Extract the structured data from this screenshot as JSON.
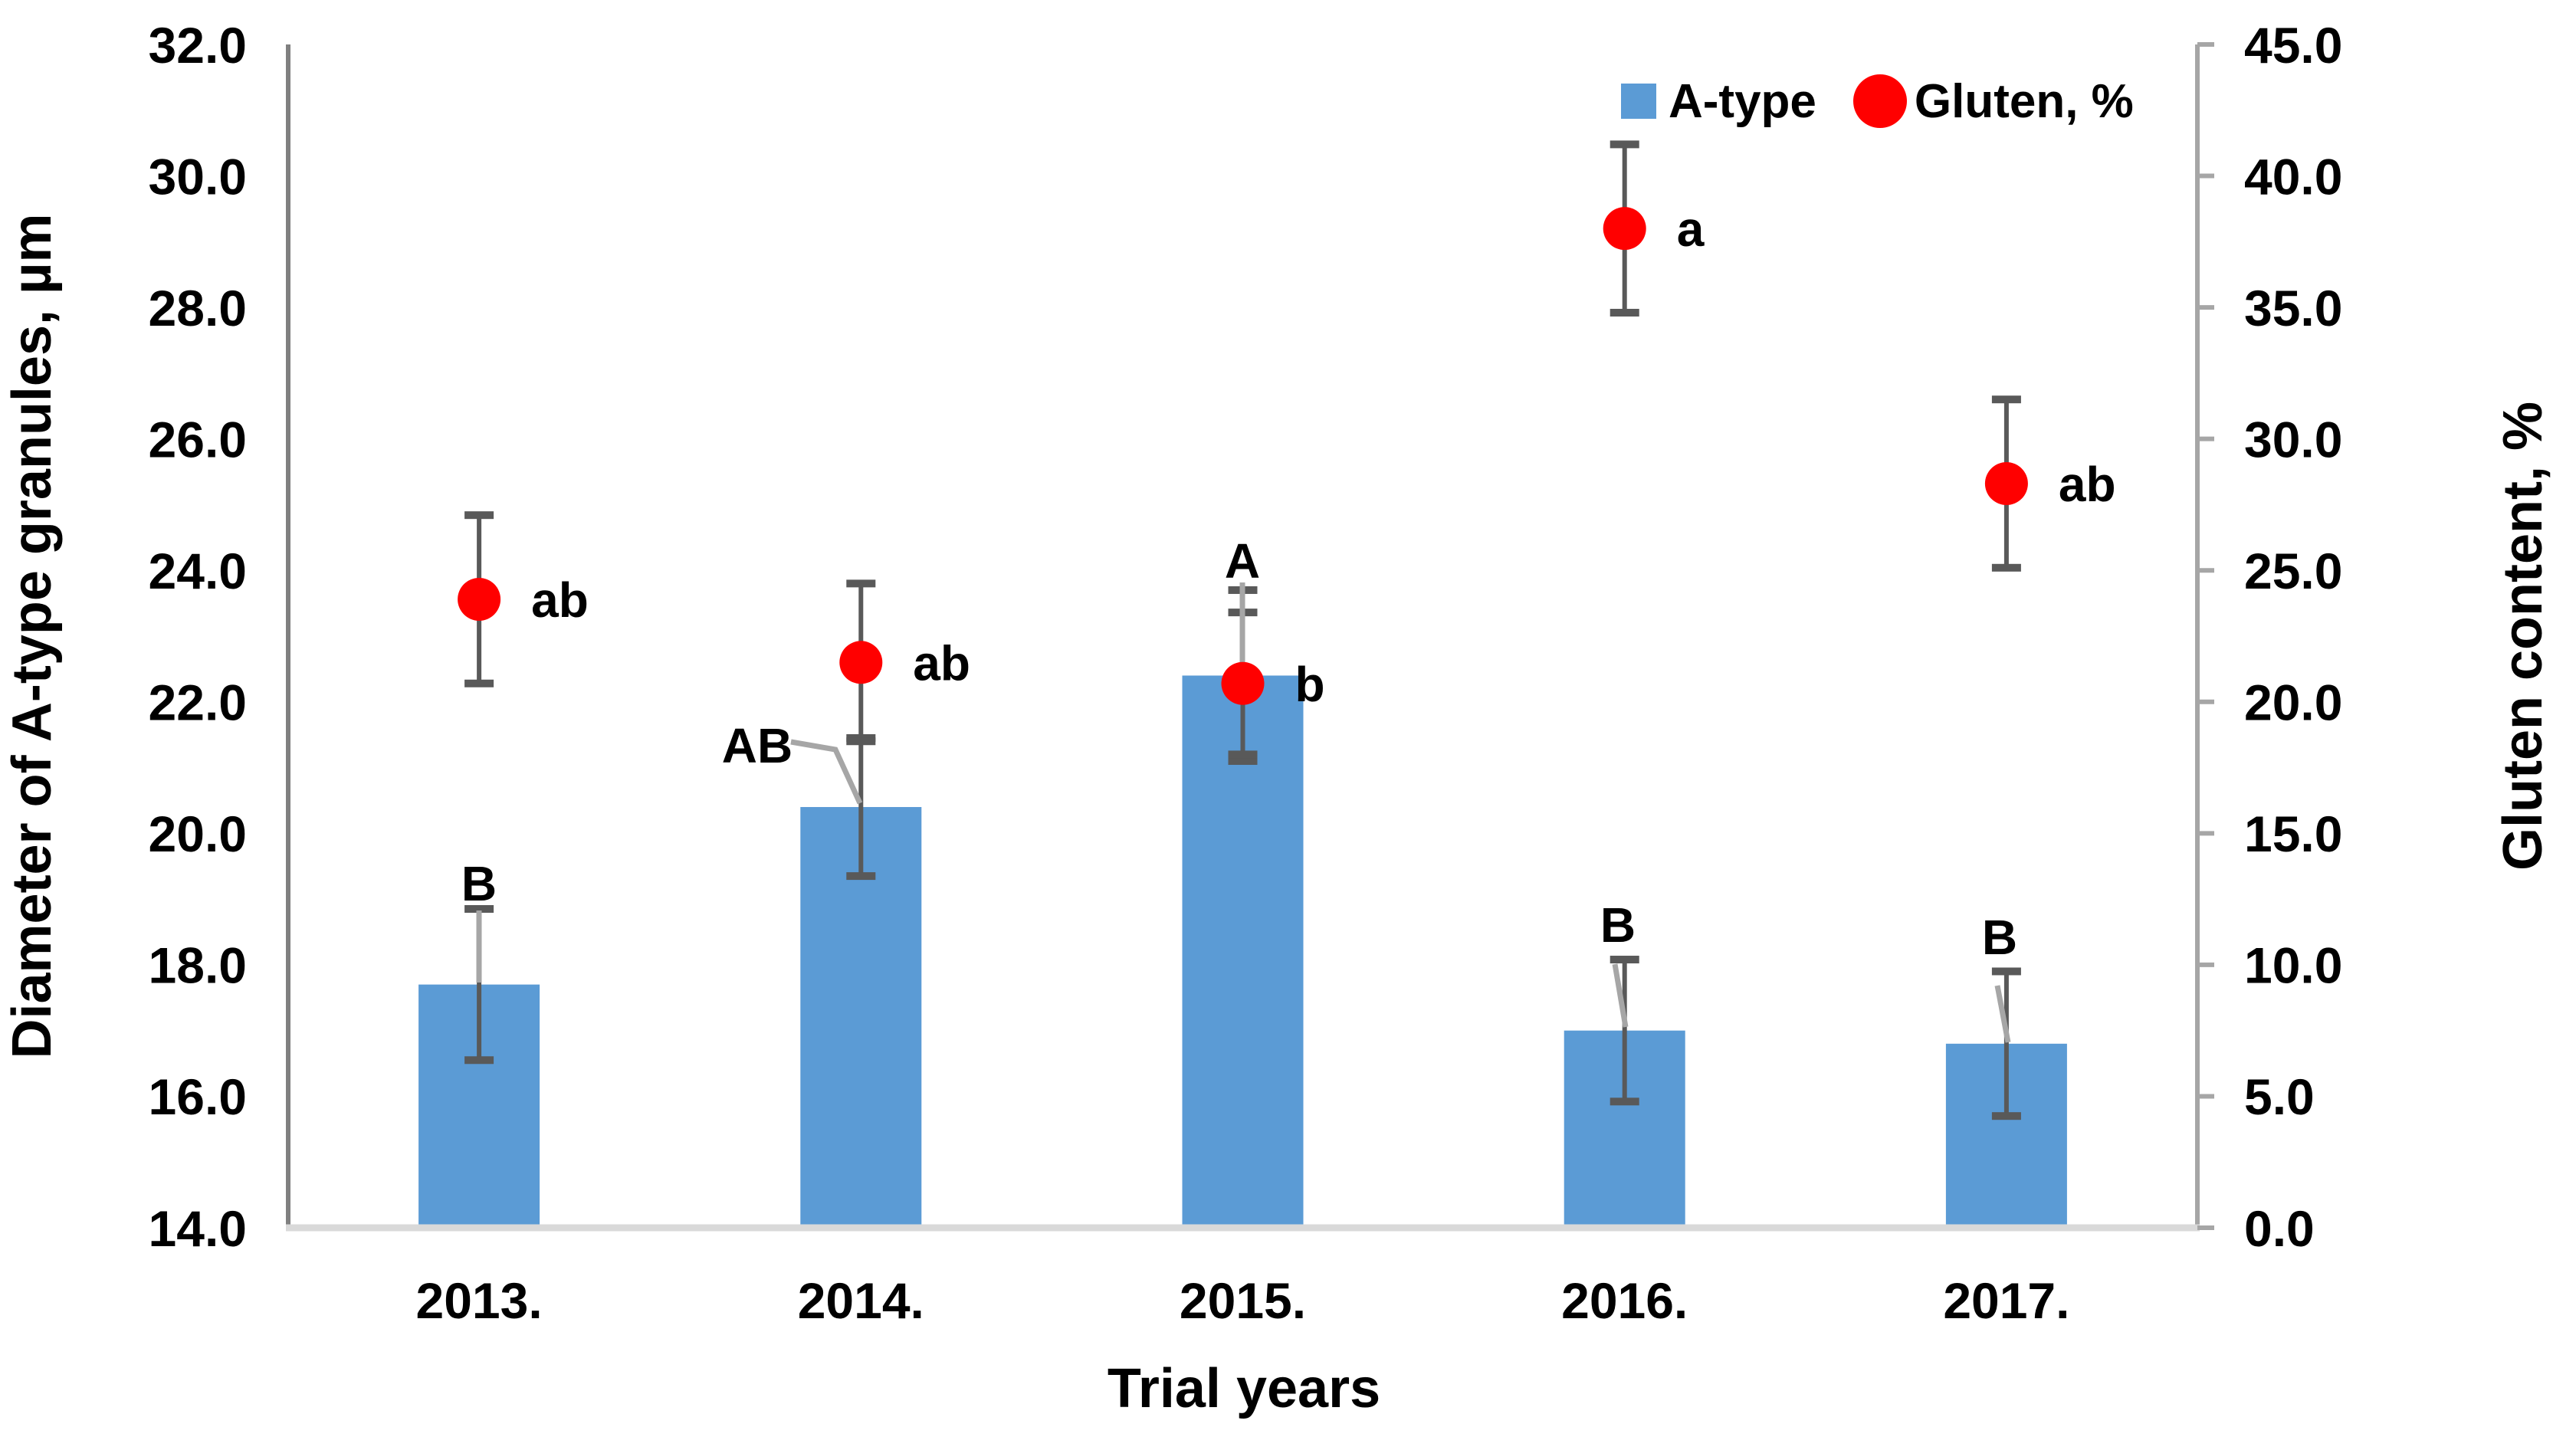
{
  "chart_data": {
    "type": "bar",
    "subtype": "dual-axis bar + scatter with error bars",
    "categories": [
      "2013.",
      "2014.",
      "2015.",
      "2016.",
      "2017."
    ],
    "series": [
      {
        "name": "A-type",
        "kind": "bar",
        "axis": "left",
        "color": "#5B9BD5",
        "values": [
          17.7,
          20.4,
          22.4,
          17.0,
          16.8
        ],
        "errors": [
          1.15,
          1.05,
          1.3,
          1.08,
          1.1
        ],
        "sig_letters": [
          "B",
          "AB",
          "A",
          "B",
          "B"
        ]
      },
      {
        "name": "Gluten, %",
        "kind": "scatter",
        "axis": "right",
        "color": "#FF0000",
        "values": [
          23.9,
          21.5,
          20.7,
          38.0,
          28.3
        ],
        "errors": [
          3.2,
          3.0,
          2.7,
          3.2,
          3.2
        ],
        "sig_letters": [
          "ab",
          "ab",
          "b",
          "a",
          "ab"
        ]
      }
    ],
    "left_axis": {
      "title": "Diameter of A-type granules, µm",
      "min": 14.0,
      "max": 32.0,
      "step": 2.0,
      "ticks": [
        "14.0",
        "16.0",
        "18.0",
        "20.0",
        "22.0",
        "24.0",
        "26.0",
        "28.0",
        "30.0",
        "32.0"
      ]
    },
    "right_axis": {
      "title": "Gluten content, %",
      "min": 0.0,
      "max": 45.0,
      "step": 5.0,
      "ticks": [
        "0.0",
        "5.0",
        "10.0",
        "15.0",
        "20.0",
        "25.0",
        "30.0",
        "35.0",
        "40.0",
        "45.0"
      ]
    },
    "x_axis": {
      "title": "Trial years"
    },
    "legend": {
      "position": "top-right",
      "items": [
        {
          "marker": "square",
          "color": "#5B9BD5",
          "label": "A-type"
        },
        {
          "marker": "circle",
          "color": "#FF0000",
          "label": "Gluten, %"
        }
      ]
    },
    "style_colors": {
      "bar_fill": "#5B9BD5",
      "dot_fill": "#FF0000",
      "error_bar": "#595959",
      "leader_line": "#A6A6A6",
      "left_axis_line": "#808080",
      "right_axis_line": "#A6A6A6",
      "bottom_axis_line": "#D9D9D9",
      "text": "#000000"
    },
    "grid": false
  }
}
